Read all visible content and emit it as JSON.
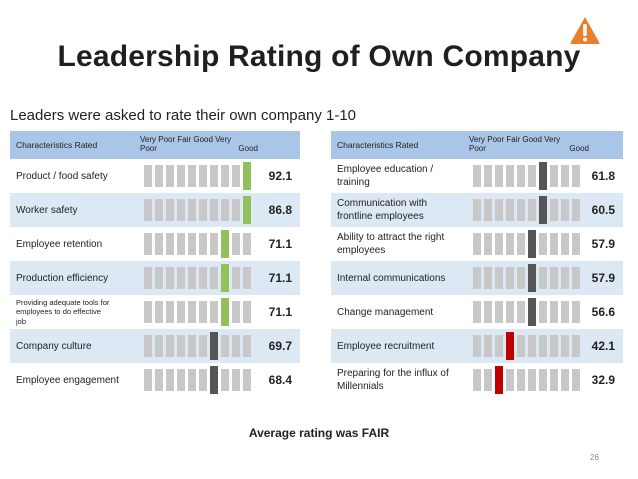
{
  "title": "Leadership Rating of Own Company",
  "subtitle": "Leaders were asked to rate their own company 1-10",
  "alert_icon": "warning-triangle-icon",
  "colors": {
    "green": "#92c05b",
    "darkgreen": "#6aa634",
    "dark": "#555555",
    "red": "#c00000",
    "gray": "#c8c8c8",
    "header": "#a9c5e7",
    "band": "#dde8f5"
  },
  "left": {
    "header": "Characteristics Rated",
    "scale_top": "Very  Poor  Fair  Good  Very",
    "scale_poor": "Poor",
    "scale_good": "Good",
    "rows": [
      {
        "label": [
          "Product / food safety"
        ],
        "value": "92.1",
        "level": 10,
        "color": "green"
      },
      {
        "label": [
          "Worker safety"
        ],
        "value": "86.8",
        "level": 10,
        "color": "green"
      },
      {
        "label": [
          "Employee retention"
        ],
        "value": "71.1",
        "level": 8,
        "color": "green"
      },
      {
        "label": [
          "Production efficiency"
        ],
        "value": "71.1",
        "level": 8,
        "color": "green"
      },
      {
        "label": [
          "Providing adequate tools for",
          "employees to do effective",
          "job"
        ],
        "value": "71.1",
        "level": 8,
        "color": "green",
        "small": true
      },
      {
        "label": [
          "Company culture"
        ],
        "value": "69.7",
        "level": 7,
        "color": "dark"
      },
      {
        "label": [
          "Employee engagement"
        ],
        "value": "68.4",
        "level": 7,
        "color": "dark"
      }
    ]
  },
  "right": {
    "header": "Characteristics Rated",
    "scale_top": "Very  Poor  Fair  Good  Very",
    "scale_poor": "Poor",
    "scale_good": "Good",
    "rows": [
      {
        "label": [
          "Employee education /",
          "training"
        ],
        "value": "61.8",
        "level": 7,
        "color": "dark"
      },
      {
        "label": [
          "Communication with",
          "frontline employees"
        ],
        "value": "60.5",
        "level": 7,
        "color": "dark"
      },
      {
        "label": [
          "Ability to attract the right",
          "employees"
        ],
        "value": "57.9",
        "level": 6,
        "color": "dark"
      },
      {
        "label": [
          "Internal communications"
        ],
        "value": "57.9",
        "level": 6,
        "color": "dark"
      },
      {
        "label": [
          "Change management"
        ],
        "value": "56.6",
        "level": 6,
        "color": "dark"
      },
      {
        "label": [
          "Employee recruitment"
        ],
        "value": "42.1",
        "level": 4,
        "color": "red"
      },
      {
        "label": [
          "Preparing for the influx of",
          "Millennials"
        ],
        "value": "32.9",
        "level": 3,
        "color": "red"
      }
    ]
  },
  "footer": "Average rating was FAIR",
  "page_number": "26"
}
